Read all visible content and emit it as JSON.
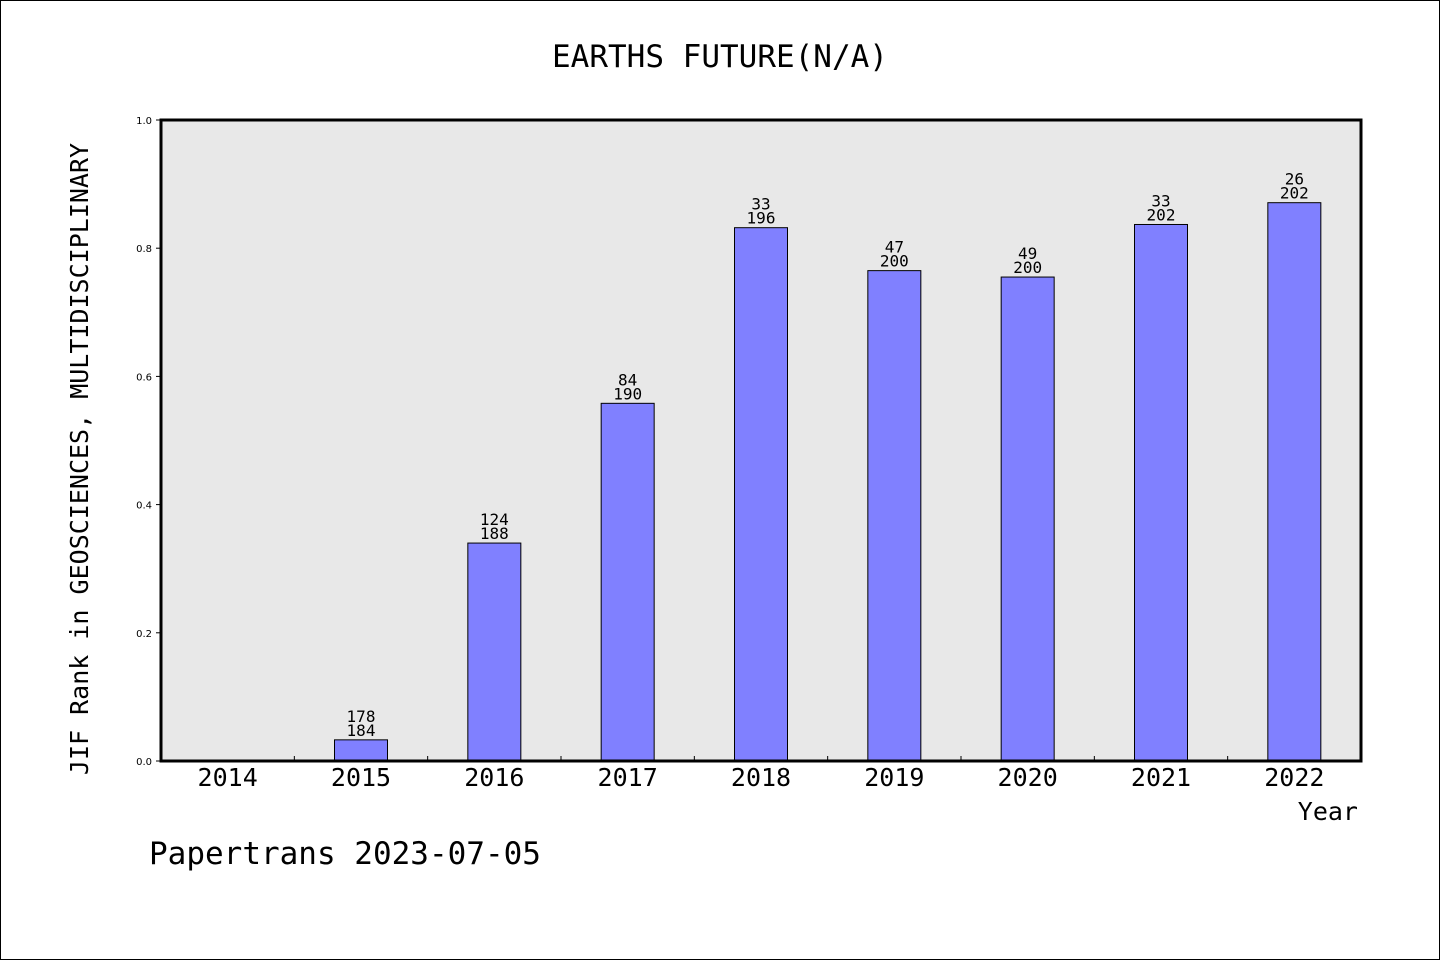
{
  "chart_data": {
    "type": "bar",
    "title": "EARTHS FUTURE(N/A)",
    "xlabel": "Year",
    "ylabel": "JIF Rank in GEOSCIENCES, MULTIDISCIPLINARY",
    "footer": "Papertrans 2023-07-05",
    "ylim": [
      0,
      1.0
    ],
    "yticks": [
      "0.0",
      "0.2",
      "0.4",
      "0.6",
      "0.8",
      "1.0"
    ],
    "grid": false,
    "bar_color": "#8080ff",
    "plot_background": "#e8e8e8",
    "categories": [
      "2014",
      "2015",
      "2016",
      "2017",
      "2018",
      "2019",
      "2020",
      "2021",
      "2022"
    ],
    "values": [
      null,
      0.033,
      0.34,
      0.558,
      0.832,
      0.765,
      0.755,
      0.837,
      0.871
    ],
    "rank_labels": [
      null,
      "178",
      "124",
      "84",
      "33",
      "47",
      "49",
      "33",
      "26"
    ],
    "total_labels": [
      null,
      "184",
      "188",
      "190",
      "196",
      "200",
      "200",
      "202",
      "202"
    ]
  }
}
